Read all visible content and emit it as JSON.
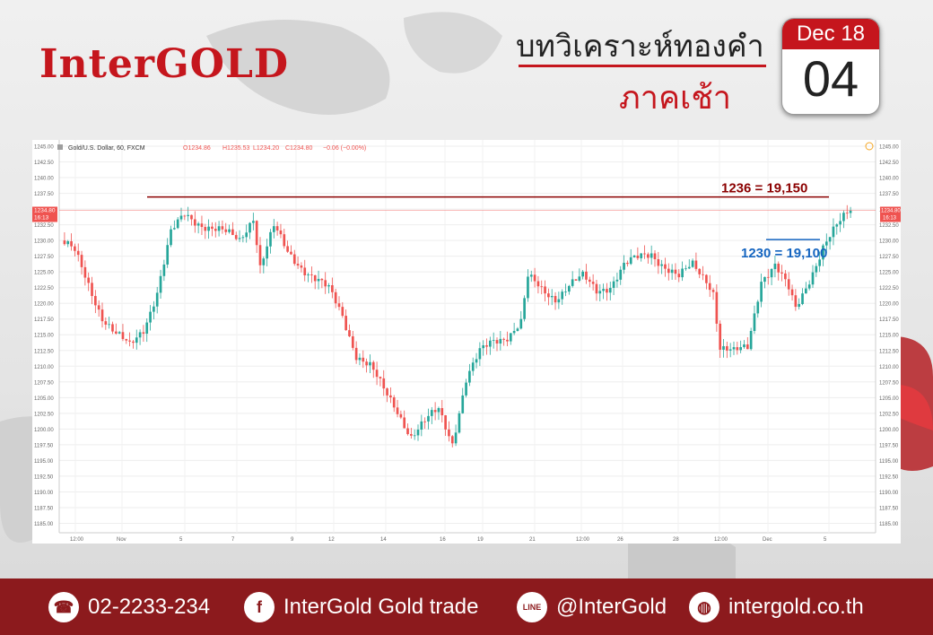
{
  "brand": {
    "logo": "InterGOLD"
  },
  "header": {
    "title": "บทวิเคราะห์ทองคำ",
    "subtitle": "ภาคเช้า"
  },
  "calendar": {
    "month_year": "Dec 18",
    "day": "04"
  },
  "chart_header": {
    "symbol": "Gold/U.S. Dollar, 60, FXCM",
    "o": "O1234.86",
    "h": "H1235.53",
    "l": "L1234.20",
    "c": "C1234.80",
    "chg": "−0.06 (−0.00%)"
  },
  "price_tag": {
    "price": "1234.80",
    "time": "16:13"
  },
  "annotations": {
    "resistance": "1236 = 19,150",
    "support": "1230 = 19,100"
  },
  "colors": {
    "brand_red": "#c5161d",
    "footer": "#8c1a1d",
    "up": "#26a69a",
    "down": "#ef5350",
    "resistance": "#8b0000",
    "support": "#1565c0"
  },
  "chart_data": {
    "type": "candlestick",
    "x_ticks": [
      "12:00",
      "Nov",
      "5",
      "7",
      "9",
      "12",
      "14",
      "16",
      "19",
      "21",
      "12:00",
      "26",
      "28",
      "12:00",
      "Dec",
      "5"
    ],
    "y_ticks": [
      "1245.00",
      "1242.50",
      "1240.00",
      "1237.50",
      "1235.00",
      "1232.50",
      "1230.00",
      "1227.50",
      "1225.00",
      "1222.50",
      "1220.00",
      "1217.50",
      "1215.00",
      "1212.50",
      "1210.00",
      "1207.50",
      "1205.00",
      "1202.50",
      "1200.00",
      "1197.50",
      "1195.00",
      "1192.50",
      "1190.00",
      "1187.50",
      "1185.00"
    ],
    "ylim": [
      1183.5,
      1246
    ],
    "resistance_level": 1236,
    "support_level": 1230,
    "path_anchors": [
      [
        0,
        1230
      ],
      [
        4,
        1228
      ],
      [
        8,
        1223
      ],
      [
        12,
        1218
      ],
      [
        16,
        1215
      ],
      [
        20,
        1213
      ],
      [
        24,
        1216
      ],
      [
        28,
        1222
      ],
      [
        32,
        1231
      ],
      [
        36,
        1234
      ],
      [
        40,
        1233
      ],
      [
        44,
        1232
      ],
      [
        48,
        1231
      ],
      [
        52,
        1230
      ],
      [
        56,
        1234
      ],
      [
        58,
        1226
      ],
      [
        62,
        1232
      ],
      [
        66,
        1228
      ],
      [
        70,
        1226
      ],
      [
        74,
        1224
      ],
      [
        78,
        1222
      ],
      [
        82,
        1218
      ],
      [
        86,
        1212
      ],
      [
        90,
        1210
      ],
      [
        94,
        1206
      ],
      [
        98,
        1203
      ],
      [
        102,
        1199
      ],
      [
        106,
        1201
      ],
      [
        110,
        1203
      ],
      [
        114,
        1198
      ],
      [
        118,
        1208
      ],
      [
        122,
        1212
      ],
      [
        126,
        1214
      ],
      [
        130,
        1215
      ],
      [
        134,
        1217
      ],
      [
        136,
        1224
      ],
      [
        140,
        1222
      ],
      [
        144,
        1221
      ],
      [
        148,
        1223
      ],
      [
        152,
        1224
      ],
      [
        156,
        1222
      ],
      [
        160,
        1223
      ],
      [
        164,
        1226
      ],
      [
        168,
        1227
      ],
      [
        172,
        1228
      ],
      [
        176,
        1226
      ],
      [
        180,
        1224
      ],
      [
        184,
        1226
      ],
      [
        188,
        1224
      ],
      [
        190,
        1222
      ],
      [
        192,
        1213
      ],
      [
        196,
        1212
      ],
      [
        200,
        1213
      ],
      [
        204,
        1224
      ],
      [
        208,
        1226
      ],
      [
        212,
        1222
      ],
      [
        214,
        1219
      ],
      [
        218,
        1224
      ],
      [
        222,
        1229
      ],
      [
        226,
        1232
      ],
      [
        230,
        1235
      ]
    ]
  }
}
